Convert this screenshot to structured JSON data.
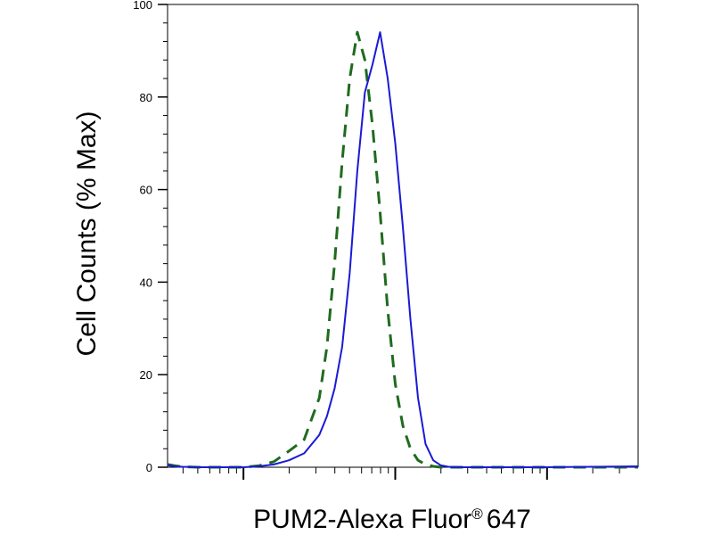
{
  "chart_data": {
    "type": "line",
    "title": "",
    "xlabel_main": "PUM2-Alexa Fluor",
    "xlabel_reg": "®",
    "xlabel_tail": "647",
    "ylabel": "Cell Counts (% Max)",
    "xscale": "log",
    "xlim": [
      0.5,
      3.6
    ],
    "ylim": [
      0,
      100
    ],
    "y_ticks": [
      0,
      20,
      40,
      60,
      80,
      100
    ],
    "y_tick_labels": [
      "0",
      "20",
      "40",
      "60",
      "80",
      "100"
    ],
    "x_major_ticks": [
      1,
      2,
      3
    ],
    "grid": false,
    "legend": "none",
    "series": [
      {
        "style": "dashed",
        "color": "#1f6b1f",
        "x": [
          0.5,
          0.55,
          0.6,
          0.7,
          0.8,
          0.9,
          1.0,
          1.1,
          1.2,
          1.3,
          1.4,
          1.5,
          1.55,
          1.6,
          1.65,
          1.7,
          1.75,
          1.8,
          1.85,
          1.9,
          1.95,
          2.0,
          2.05,
          2.1,
          2.15,
          2.2,
          2.25,
          2.3,
          2.35,
          2.4,
          2.5,
          2.6,
          2.7,
          2.8,
          3.0,
          3.3,
          3.6
        ],
        "y": [
          0.6,
          0.3,
          0.1,
          0,
          0,
          0,
          0,
          0.3,
          1.2,
          3.5,
          6,
          15,
          26,
          44,
          66,
          84,
          94,
          88,
          74,
          55,
          34,
          18,
          9,
          4,
          1.5,
          0.6,
          0.2,
          0,
          0,
          0,
          0,
          0,
          0,
          0,
          0,
          0,
          0
        ]
      },
      {
        "style": "solid",
        "color": "#1a1ad6",
        "x": [
          0.5,
          0.55,
          0.6,
          0.7,
          0.8,
          0.9,
          1.0,
          1.1,
          1.2,
          1.3,
          1.4,
          1.5,
          1.55,
          1.6,
          1.65,
          1.7,
          1.75,
          1.8,
          1.85,
          1.9,
          1.95,
          2.0,
          2.05,
          2.1,
          2.15,
          2.2,
          2.25,
          2.3,
          2.35,
          2.4,
          2.5,
          2.6,
          2.7,
          2.8,
          3.0,
          3.3,
          3.6
        ],
        "y": [
          0.4,
          0.2,
          0.1,
          0,
          0,
          0,
          0,
          0.2,
          0.6,
          1.5,
          3,
          7,
          11,
          17,
          26,
          42,
          64,
          81,
          87,
          94,
          84,
          70,
          52,
          32,
          15,
          5,
          1.5,
          0.4,
          0.1,
          0,
          0,
          0,
          0,
          0,
          0,
          0.1,
          0.2
        ]
      }
    ]
  }
}
